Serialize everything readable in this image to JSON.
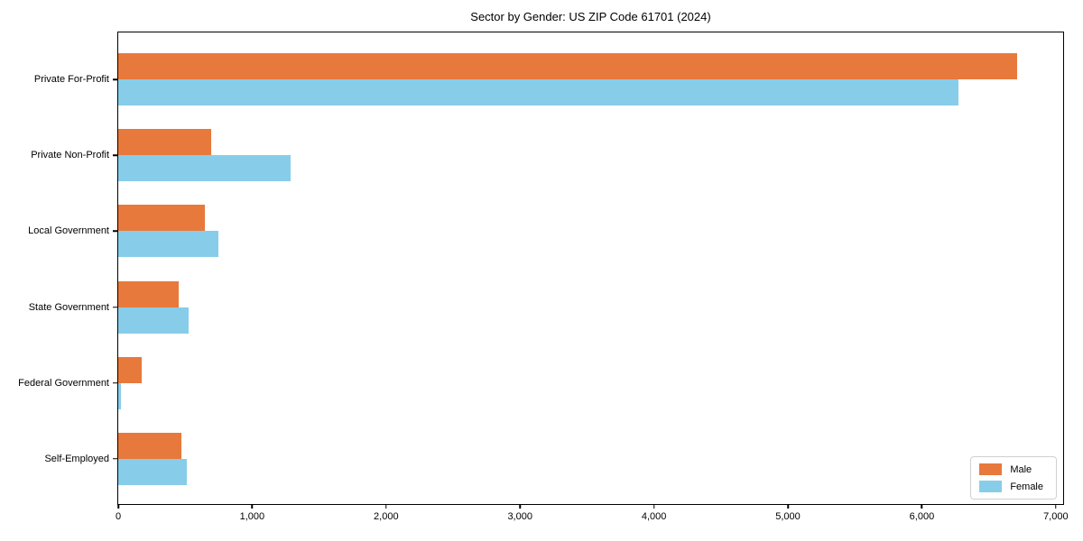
{
  "chart_data": {
    "type": "bar",
    "orientation": "horizontal",
    "title": "Sector by Gender: US ZIP Code 61701 (2024)",
    "categories": [
      "Private For-Profit",
      "Private Non-Profit",
      "Local Government",
      "State Government",
      "Federal Government",
      "Self-Employed"
    ],
    "series": [
      {
        "name": "Male",
        "color": "#e8793c",
        "values": [
          6714,
          695,
          644,
          449,
          175,
          469
        ]
      },
      {
        "name": "Female",
        "color": "#87cde9",
        "values": [
          6272,
          1284,
          746,
          523,
          22,
          511
        ]
      }
    ],
    "xlabel": "",
    "ylabel": "",
    "xlim": [
      0,
      7055
    ],
    "x_ticks": [
      0,
      1000,
      2000,
      3000,
      4000,
      5000,
      6000,
      7000
    ],
    "x_tick_labels": [
      "0",
      "1,000",
      "2,000",
      "3,000",
      "4,000",
      "5,000",
      "6,000",
      "7,000"
    ],
    "grid": false,
    "legend_position": "lower right",
    "plot_border_color": "#000000",
    "background_color": "#ffffff"
  }
}
